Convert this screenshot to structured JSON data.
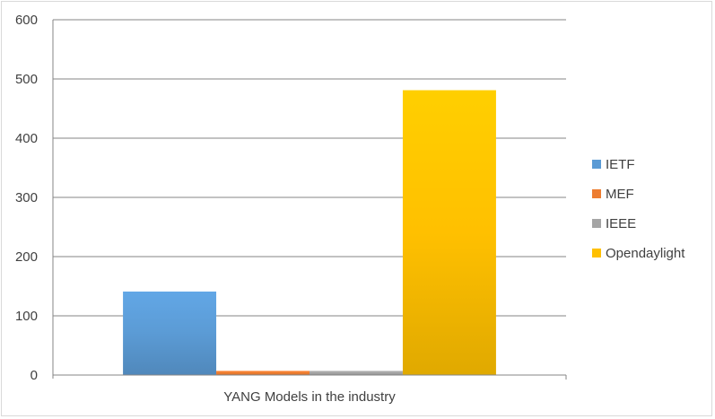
{
  "chart_data": {
    "type": "bar",
    "title": "",
    "xlabel": "",
    "ylabel": "",
    "categories": [
      "YANG Models in the industry"
    ],
    "series": [
      {
        "name": "IETF",
        "values": [
          141
        ],
        "color": "#5b9bd5"
      },
      {
        "name": "MEF",
        "values": [
          7
        ],
        "color": "#ed7d31"
      },
      {
        "name": "IEEE",
        "values": [
          7
        ],
        "color": "#a5a5a5"
      },
      {
        "name": "Opendaylight",
        "values": [
          481
        ],
        "color": "#ffc000"
      }
    ],
    "ylim": [
      0,
      600
    ],
    "yticks": [
      0,
      100,
      200,
      300,
      400,
      500,
      600
    ],
    "grid": true,
    "legend": "right"
  }
}
